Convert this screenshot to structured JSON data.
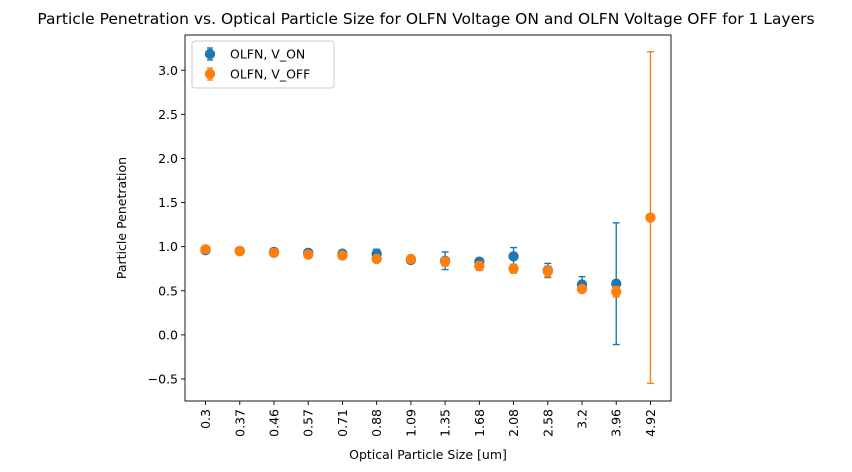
{
  "chart_data": {
    "type": "scatter",
    "title": "Particle Penetration vs. Optical Particle Size for OLFN Voltage ON and OLFN Voltage OFF for 1 Layers",
    "xlabel": "Optical Particle Size [um]",
    "ylabel": "Particle Penetration",
    "categories": [
      "0.3",
      "0.37",
      "0.46",
      "0.57",
      "0.71",
      "0.88",
      "1.09",
      "1.35",
      "1.68",
      "2.08",
      "2.58",
      "3.2",
      "3.96",
      "4.92"
    ],
    "y_ticks": [
      "−0.5",
      "0.0",
      "0.5",
      "1.0",
      "1.5",
      "2.0",
      "2.5",
      "3.0"
    ],
    "y_tick_values": [
      -0.5,
      0.0,
      0.5,
      1.0,
      1.5,
      2.0,
      2.5,
      3.0
    ],
    "ylim": [
      -0.75,
      3.4
    ],
    "grid": false,
    "legend_position": "top-left",
    "series": [
      {
        "name": "OLFN, V_ON",
        "color": "#1f77b4",
        "values": [
          0.96,
          0.95,
          0.94,
          0.93,
          0.92,
          0.92,
          0.85,
          0.84,
          0.83,
          0.89,
          0.73,
          0.57,
          0.58,
          null
        ],
        "errors": [
          0.01,
          0.01,
          0.03,
          0.02,
          0.03,
          0.05,
          0.02,
          0.1,
          0.03,
          0.1,
          0.08,
          0.09,
          0.69,
          null
        ]
      },
      {
        "name": "OLFN, V_OFF",
        "color": "#ff7f0e",
        "values": [
          0.97,
          0.95,
          0.93,
          0.91,
          0.9,
          0.86,
          0.86,
          0.83,
          0.78,
          0.75,
          0.72,
          0.52,
          0.49,
          1.33
        ],
        "errors": [
          0.01,
          0.01,
          0.02,
          0.02,
          0.02,
          0.03,
          0.03,
          0.05,
          0.05,
          0.05,
          0.06,
          0.02,
          0.06,
          1.88
        ]
      }
    ]
  }
}
